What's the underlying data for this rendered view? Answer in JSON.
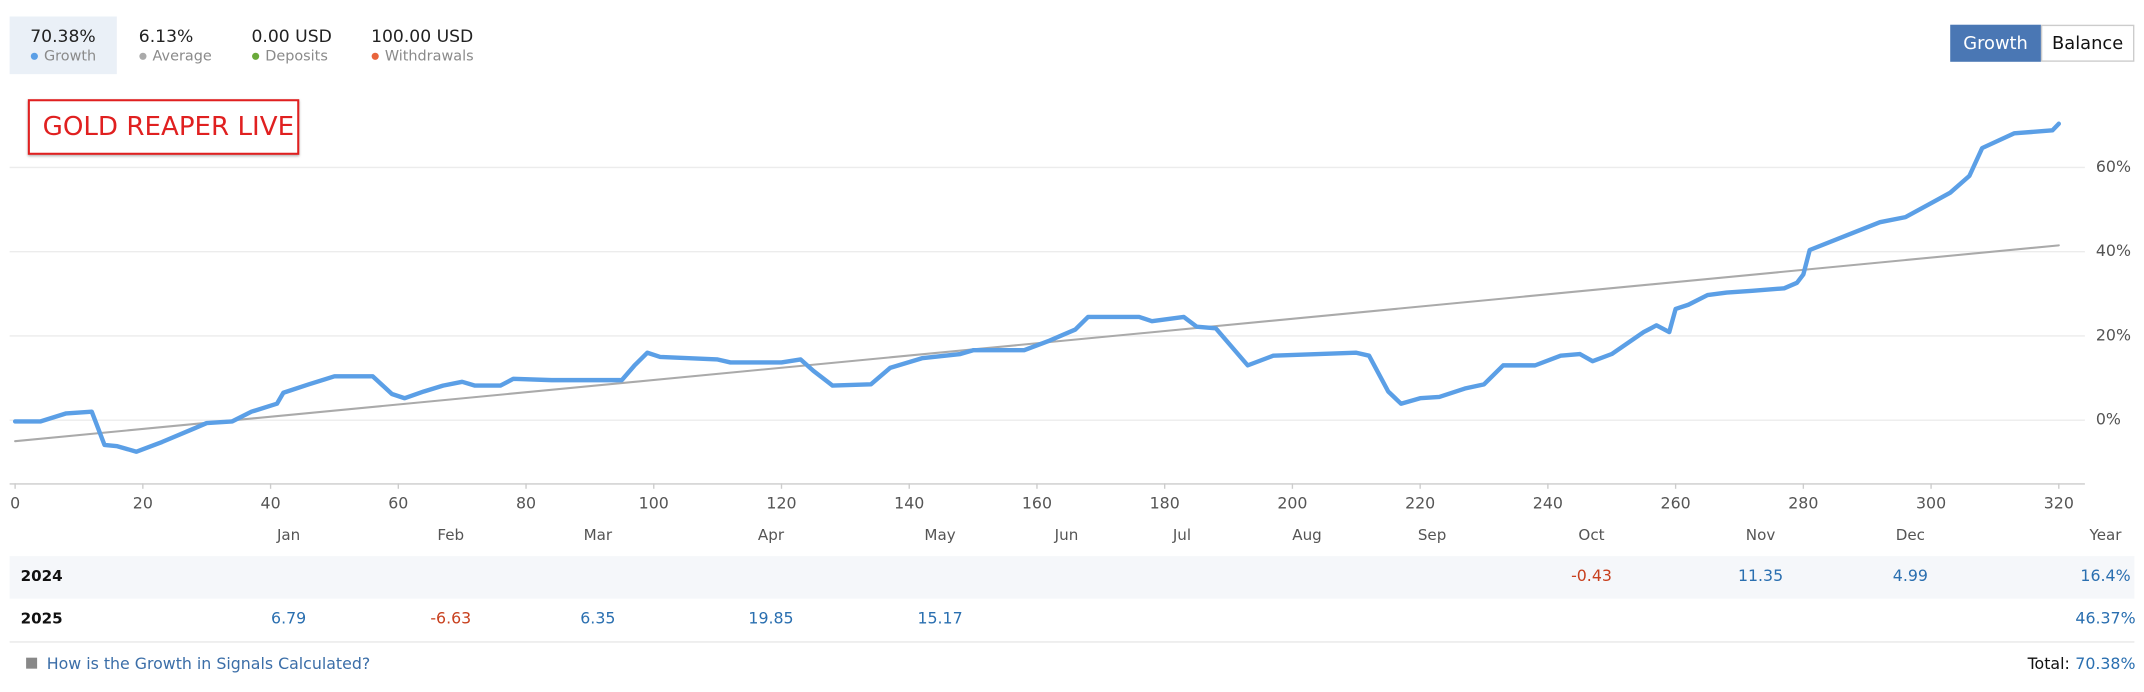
{
  "stats": [
    {
      "value": "70.38%",
      "label": "Growth"
    },
    {
      "value": "6.13%",
      "label": "Average"
    },
    {
      "value": "0.00 USD",
      "label": "Deposits"
    },
    {
      "value": "100.00 USD",
      "label": "Withdrawals"
    }
  ],
  "buttons": [
    "Growth",
    "Balance"
  ],
  "chart_data": {
    "type": "line",
    "title": "GOLD REAPER LIVE",
    "xlim": [
      -1,
      324
    ],
    "xticks": [
      0,
      20,
      40,
      60,
      80,
      100,
      120,
      140,
      160,
      180,
      200,
      220,
      240,
      260,
      280,
      300,
      320
    ],
    "ylim": [
      -15,
      80
    ],
    "yticks": [
      {
        "value": 0,
        "label": "0%"
      },
      {
        "value": 20,
        "label": "20%"
      },
      {
        "value": 40,
        "label": "40%"
      },
      {
        "value": 60,
        "label": "60%"
      }
    ],
    "grid": true,
    "series": [
      {
        "name": "Growth",
        "color": "#5b9fe6",
        "x": [
          0,
          4,
          8,
          12,
          14,
          16,
          19,
          23,
          28,
          30,
          34,
          37,
          41,
          42,
          46,
          50,
          56,
          59,
          61,
          64,
          67,
          70,
          72,
          76,
          78,
          84,
          95,
          97,
          99,
          101,
          110,
          112,
          120,
          123,
          125,
          128,
          134,
          137,
          142,
          148,
          150,
          158,
          162,
          166,
          168,
          176,
          178,
          183,
          185,
          188,
          193,
          197,
          210,
          212,
          215,
          217,
          220,
          223,
          227,
          230,
          233,
          238,
          242,
          245,
          247,
          250,
          255,
          257,
          259,
          260,
          262,
          265,
          268,
          272,
          277,
          279,
          280,
          281,
          287,
          292,
          296,
          300,
          303,
          306,
          308,
          313,
          319,
          320
        ],
        "values": [
          -0.3,
          -0.3,
          1.6,
          2,
          -5.9,
          -6.2,
          -7.5,
          -5.2,
          -2,
          -0.7,
          -0.3,
          2,
          3.9,
          6.5,
          8.5,
          10.4,
          10.4,
          6.2,
          5.2,
          6.8,
          8.2,
          9.1,
          8.2,
          8.2,
          9.8,
          9.5,
          9.5,
          13,
          16,
          15,
          14.4,
          13.7,
          13.7,
          14.4,
          11.7,
          8.2,
          8.5,
          12.4,
          14.7,
          15.7,
          16.6,
          16.6,
          18.9,
          21.5,
          24.5,
          24.5,
          23.5,
          24.5,
          22.2,
          21.8,
          13,
          15.3,
          16,
          15.3,
          6.8,
          3.9,
          5.2,
          5.5,
          7.5,
          8.5,
          13,
          13,
          15.3,
          15.7,
          14,
          15.7,
          20.9,
          22.5,
          20.9,
          26.4,
          27.4,
          29.7,
          30.3,
          30.7,
          31.3,
          32.6,
          34.6,
          40.4,
          44,
          47,
          48.2,
          51.5,
          54,
          58,
          64.6,
          68.1,
          68.8,
          70.38
        ]
      },
      {
        "name": "Average",
        "color": "#aaaaaa",
        "x": [
          0,
          320
        ],
        "values": [
          -5,
          41.5
        ]
      }
    ]
  },
  "table": {
    "columns": [
      "Jan",
      "Feb",
      "Mar",
      "Apr",
      "May",
      "Jun",
      "Jul",
      "Aug",
      "Sep",
      "Oct",
      "Nov",
      "Dec",
      "Year"
    ],
    "rows": [
      {
        "label": "2024",
        "cells": [
          null,
          null,
          null,
          null,
          null,
          null,
          null,
          null,
          null,
          "-0.43",
          "11.35",
          "4.99",
          "16.4%"
        ]
      },
      {
        "label": "2025",
        "cells": [
          "6.79",
          "-6.63",
          "6.35",
          "19.85",
          "15.17",
          null,
          null,
          null,
          null,
          null,
          null,
          null,
          "46.37%"
        ]
      }
    ]
  },
  "footer": {
    "help_link": "How is the Growth in Signals Calculated?",
    "total_label": "Total:",
    "total_value": "70.38%"
  }
}
